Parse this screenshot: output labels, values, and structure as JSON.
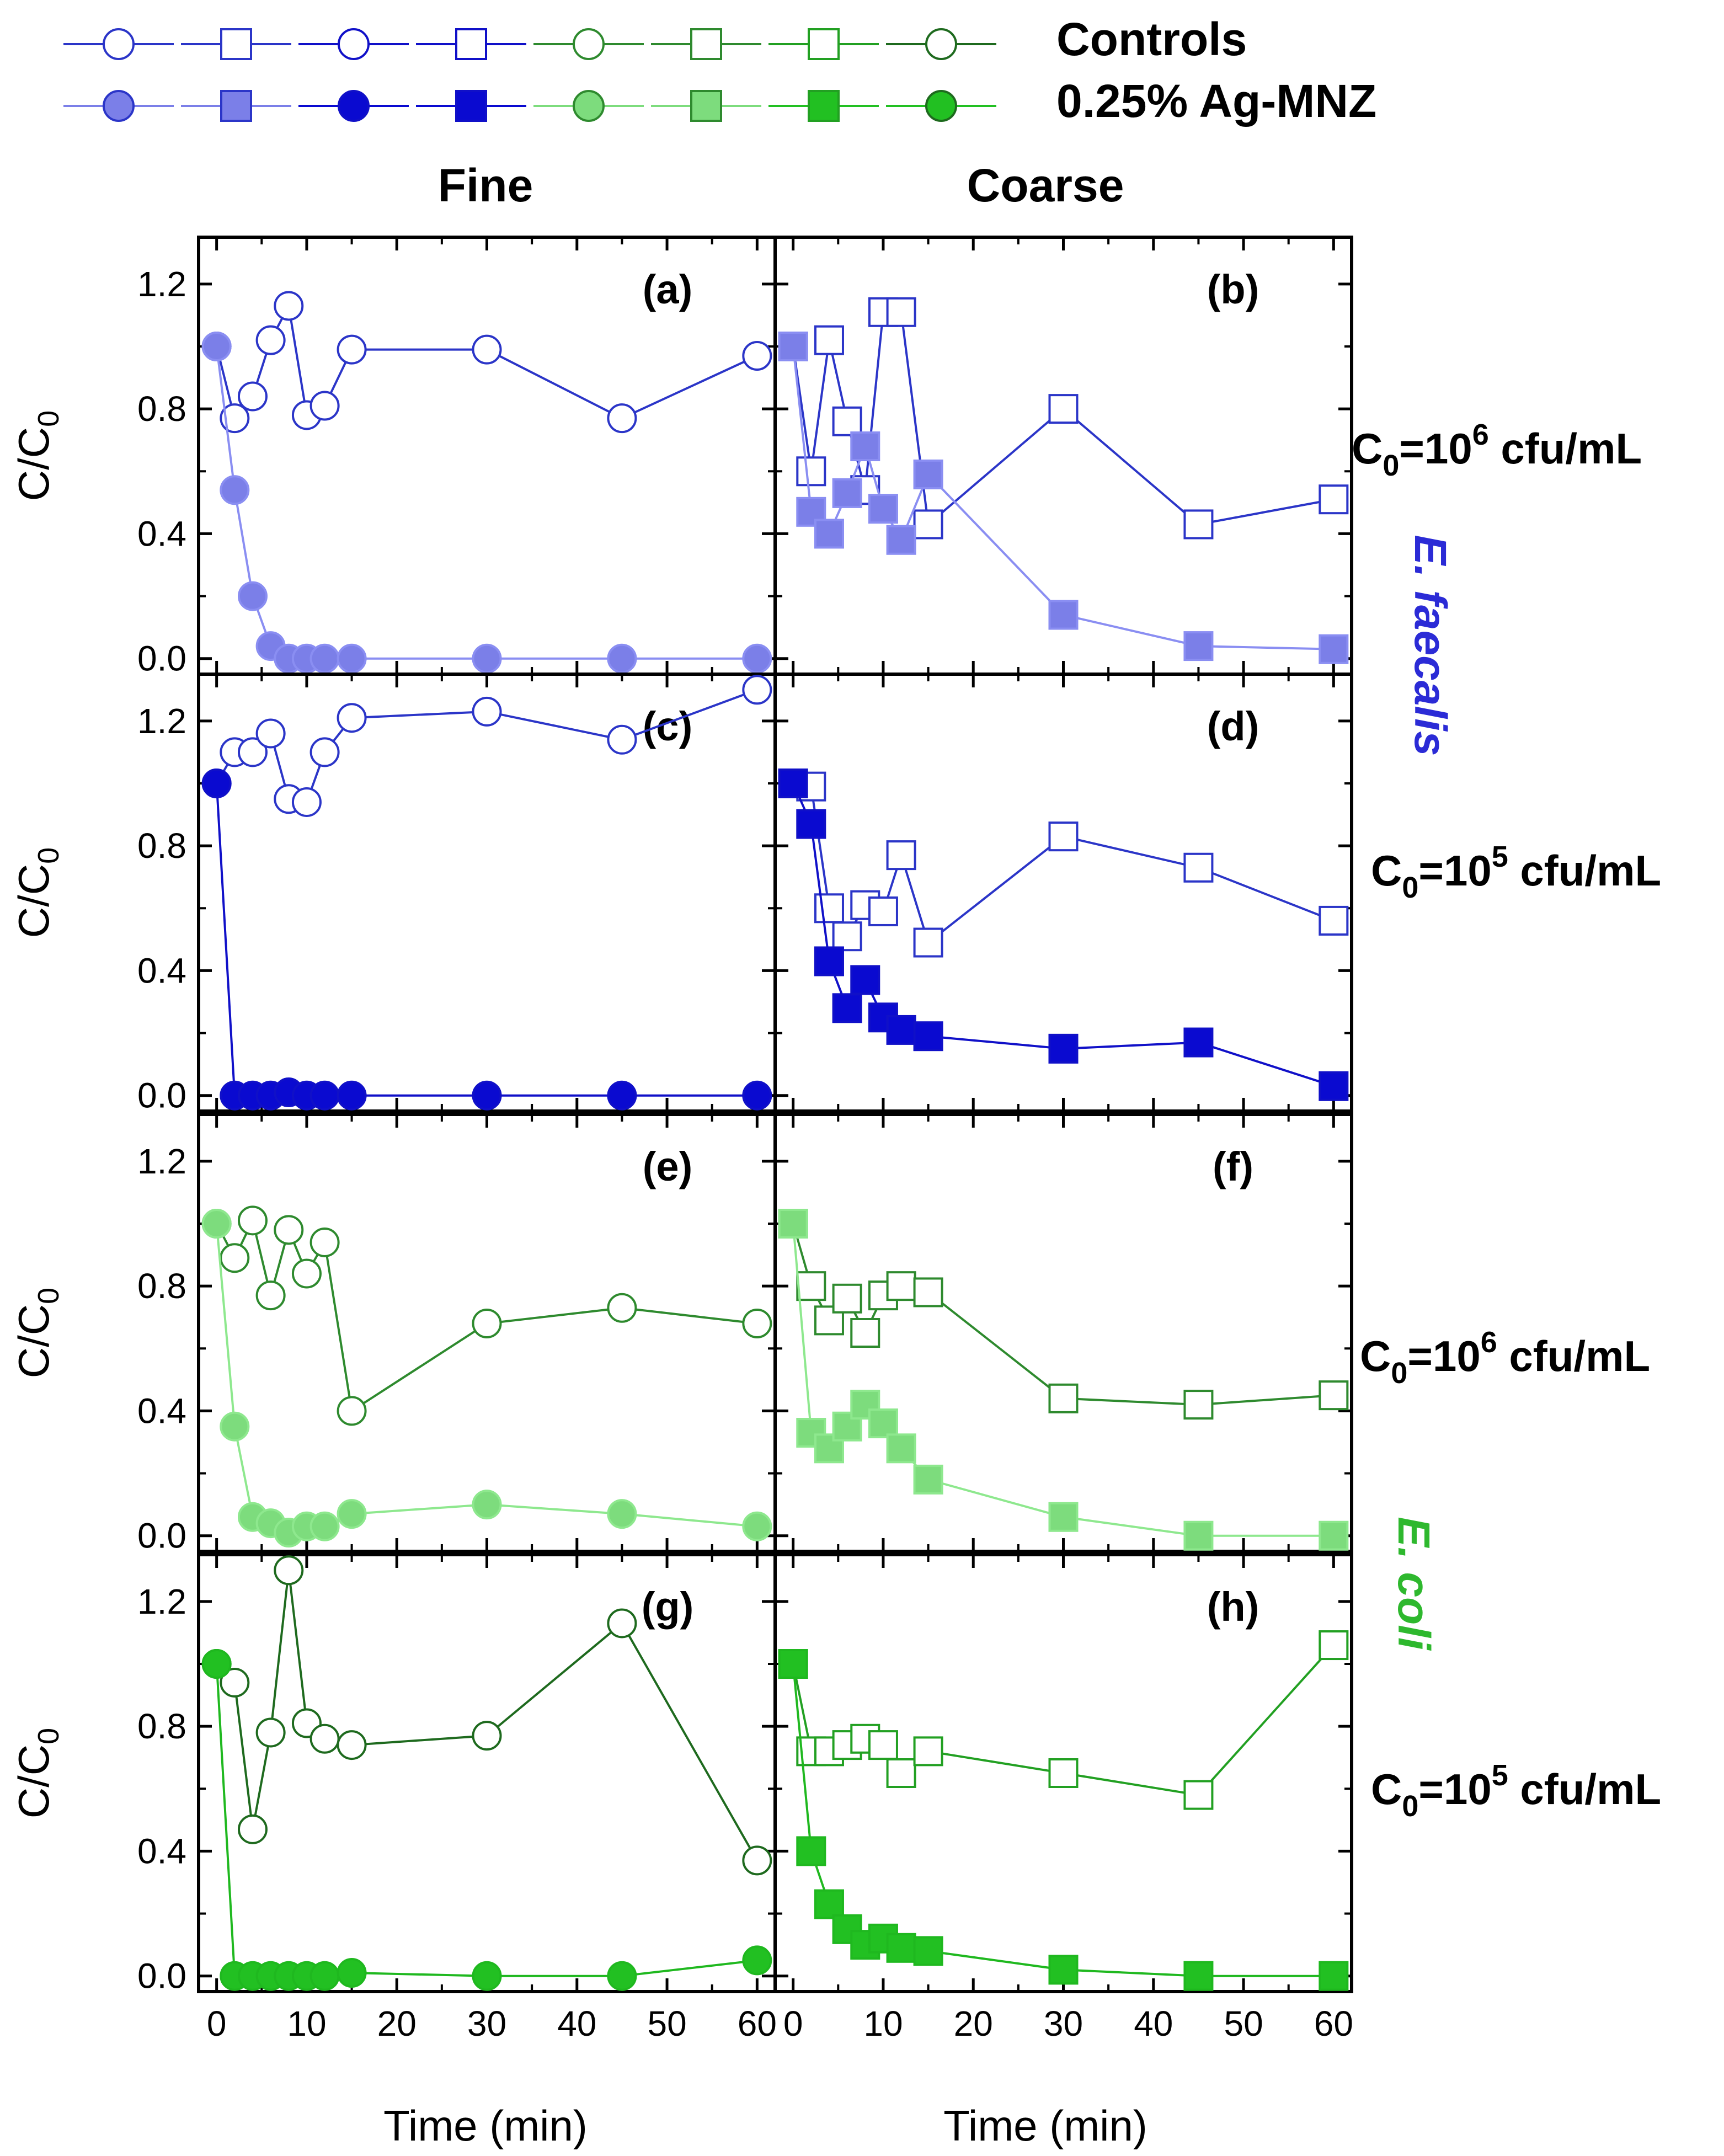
{
  "legend": {
    "controls_label": "Controls",
    "treated_label": "0.25% Ag-MNZ"
  },
  "column_titles": {
    "fine": "Fine",
    "coarse": "Coarse"
  },
  "axis": {
    "ylabel": "C/C0",
    "xlabel": "Time (min)"
  },
  "concentrations": [
    {
      "base": "C",
      "sub": "0",
      "mid": "=10",
      "sup": "6",
      "unit": " cfu/mL",
      "full": "C0=10^6 cfu/mL"
    },
    {
      "base": "C",
      "sub": "0",
      "mid": "=10",
      "sup": "5",
      "unit": " cfu/mL",
      "full": "C0=10^5 cfu/mL"
    },
    {
      "base": "C",
      "sub": "0",
      "mid": "=10",
      "sup": "6",
      "unit": " cfu/mL",
      "full": "C0=10^6 cfu/mL"
    },
    {
      "base": "C",
      "sub": "0",
      "mid": "=10",
      "sup": "5",
      "unit": " cfu/mL",
      "full": "C0=10^5 cfu/mL"
    }
  ],
  "species": [
    {
      "name": "E. faecalis",
      "color": "#2b2bd6"
    },
    {
      "name": "E. coli",
      "color": "#2eb82e"
    }
  ],
  "chart_data": {
    "type": "line",
    "xlabel": "Time (min)",
    "ylabel": "C/C0",
    "xlim": [
      -2,
      62
    ],
    "ylim": [
      -0.05,
      1.35
    ],
    "xticks": [
      0,
      10,
      20,
      30,
      40,
      50,
      60
    ],
    "yticks": [
      0.0,
      0.4,
      0.8,
      1.2
    ],
    "yticks_labels": [
      "0.0",
      "0.4",
      "0.8",
      "1.2"
    ],
    "panels": [
      {
        "label": "(a)",
        "row": 0,
        "col": 0,
        "marker": "circle",
        "control": {
          "color": "#2b35c8",
          "x": [
            0,
            2,
            4,
            6,
            8,
            10,
            12,
            15,
            30,
            45,
            60
          ],
          "y": [
            1.0,
            0.77,
            0.84,
            1.02,
            1.13,
            0.78,
            0.81,
            0.99,
            0.99,
            0.77,
            0.97
          ]
        },
        "treated": {
          "color": "#8a8ef2",
          "fill": "#7b7fe8",
          "x": [
            0,
            2,
            4,
            6,
            8,
            10,
            12,
            15,
            30,
            45,
            60
          ],
          "y": [
            1.0,
            0.54,
            0.2,
            0.04,
            0.0,
            0.0,
            0.0,
            0.0,
            0.0,
            0.0,
            0.0
          ]
        }
      },
      {
        "label": "(b)",
        "row": 0,
        "col": 1,
        "marker": "square",
        "control": {
          "color": "#2b35c8",
          "x": [
            0,
            2,
            4,
            6,
            8,
            10,
            12,
            15,
            30,
            45,
            60
          ],
          "y": [
            1.0,
            0.6,
            1.02,
            0.76,
            0.54,
            1.11,
            1.11,
            0.43,
            0.8,
            0.43,
            0.51
          ]
        },
        "treated": {
          "color": "#8a8ef2",
          "fill": "#7b7fe8",
          "x": [
            0,
            2,
            4,
            6,
            8,
            10,
            12,
            15,
            30,
            45,
            60
          ],
          "y": [
            1.0,
            0.47,
            0.4,
            0.53,
            0.68,
            0.48,
            0.38,
            0.59,
            0.14,
            0.04,
            0.03
          ]
        }
      },
      {
        "label": "(c)",
        "row": 1,
        "col": 0,
        "marker": "circle",
        "control": {
          "color": "#2b35c8",
          "x": [
            0,
            2,
            4,
            6,
            8,
            10,
            12,
            15,
            30,
            45,
            60
          ],
          "y": [
            1.0,
            1.1,
            1.1,
            1.16,
            0.95,
            0.94,
            1.1,
            1.21,
            1.23,
            1.14,
            1.3
          ]
        },
        "treated": {
          "color": "#1010c8",
          "fill": "#0a0ad0",
          "x": [
            0,
            2,
            4,
            6,
            8,
            10,
            12,
            15,
            30,
            45,
            60
          ],
          "y": [
            1.0,
            0.0,
            0.0,
            0.0,
            0.01,
            0.0,
            0.0,
            0.0,
            0.0,
            0.0,
            0.0
          ]
        }
      },
      {
        "label": "(d)",
        "row": 1,
        "col": 1,
        "marker": "square",
        "control": {
          "color": "#2b35c8",
          "x": [
            0,
            2,
            4,
            6,
            8,
            10,
            12,
            15,
            30,
            45,
            60
          ],
          "y": [
            1.0,
            0.99,
            0.6,
            0.51,
            0.61,
            0.59,
            0.77,
            0.49,
            0.83,
            0.73,
            0.56
          ]
        },
        "treated": {
          "color": "#1010c8",
          "fill": "#0a0ad0",
          "x": [
            0,
            2,
            4,
            6,
            8,
            10,
            12,
            15,
            30,
            45,
            60
          ],
          "y": [
            1.0,
            0.87,
            0.43,
            0.28,
            0.37,
            0.25,
            0.21,
            0.19,
            0.15,
            0.17,
            0.03
          ]
        }
      },
      {
        "label": "(e)",
        "row": 2,
        "col": 0,
        "marker": "circle",
        "control": {
          "color": "#2e8a2e",
          "x": [
            0,
            2,
            4,
            6,
            8,
            10,
            12,
            15,
            30,
            45,
            60
          ],
          "y": [
            1.0,
            0.89,
            1.01,
            0.77,
            0.98,
            0.84,
            0.94,
            0.4,
            0.68,
            0.73,
            0.68
          ]
        },
        "treated": {
          "color": "#8ee88e",
          "fill": "#7ddc7d",
          "x": [
            0,
            2,
            4,
            6,
            8,
            10,
            12,
            15,
            30,
            45,
            60
          ],
          "y": [
            1.0,
            0.35,
            0.06,
            0.04,
            0.01,
            0.03,
            0.03,
            0.07,
            0.1,
            0.07,
            0.03
          ]
        }
      },
      {
        "label": "(f)",
        "row": 2,
        "col": 1,
        "marker": "square",
        "control": {
          "color": "#2e8a2e",
          "x": [
            0,
            2,
            4,
            6,
            8,
            10,
            12,
            15,
            30,
            45,
            60
          ],
          "y": [
            1.0,
            0.8,
            0.69,
            0.76,
            0.65,
            0.77,
            0.8,
            0.78,
            0.44,
            0.42,
            0.45
          ]
        },
        "treated": {
          "color": "#8ee88e",
          "fill": "#7ddc7d",
          "x": [
            0,
            2,
            4,
            6,
            8,
            10,
            12,
            15,
            30,
            45,
            60
          ],
          "y": [
            1.0,
            0.33,
            0.28,
            0.35,
            0.42,
            0.36,
            0.28,
            0.18,
            0.06,
            0.0,
            0.0
          ]
        }
      },
      {
        "label": "(g)",
        "row": 3,
        "col": 0,
        "marker": "circle",
        "control": {
          "color": "#1e6a1e",
          "x": [
            0,
            2,
            4,
            6,
            8,
            10,
            12,
            15,
            30,
            45,
            60
          ],
          "y": [
            1.0,
            0.94,
            0.47,
            0.78,
            1.3,
            0.81,
            0.76,
            0.74,
            0.77,
            1.13,
            0.37
          ]
        },
        "treated": {
          "color": "#1fb81f",
          "fill": "#22c022",
          "x": [
            0,
            2,
            4,
            6,
            8,
            10,
            12,
            15,
            30,
            45,
            60
          ],
          "y": [
            1.0,
            0.0,
            0.0,
            0.0,
            0.0,
            0.0,
            0.0,
            0.01,
            0.0,
            0.0,
            0.05
          ]
        }
      },
      {
        "label": "(h)",
        "row": 3,
        "col": 1,
        "marker": "square",
        "control": {
          "color": "#22a022",
          "x": [
            0,
            2,
            4,
            6,
            8,
            10,
            12,
            15,
            30,
            45,
            60
          ],
          "y": [
            1.0,
            0.72,
            0.72,
            0.74,
            0.76,
            0.74,
            0.65,
            0.72,
            0.65,
            0.58,
            1.06
          ]
        },
        "treated": {
          "color": "#1fb81f",
          "fill": "#22c022",
          "x": [
            0,
            2,
            4,
            6,
            8,
            10,
            12,
            15,
            30,
            45,
            60
          ],
          "y": [
            1.0,
            0.4,
            0.23,
            0.15,
            0.1,
            0.12,
            0.09,
            0.08,
            0.02,
            0.0,
            0.0
          ]
        }
      }
    ],
    "legend_series": [
      {
        "marker": "circle",
        "color": "#2b35c8",
        "fill": "#7b7fe8"
      },
      {
        "marker": "square",
        "color": "#2b35c8",
        "fill": "#7b7fe8"
      },
      {
        "marker": "circle",
        "color": "#1010c8",
        "fill": "#0a0ad0"
      },
      {
        "marker": "square",
        "color": "#1010c8",
        "fill": "#0a0ad0"
      },
      {
        "marker": "circle",
        "color": "#2e8a2e",
        "fill": "#7ddc7d"
      },
      {
        "marker": "square",
        "color": "#2e8a2e",
        "fill": "#7ddc7d"
      },
      {
        "marker": "square",
        "color": "#22a022",
        "fill": "#22c022"
      },
      {
        "marker": "circle",
        "color": "#1e6a1e",
        "fill": "#22c022"
      }
    ]
  }
}
